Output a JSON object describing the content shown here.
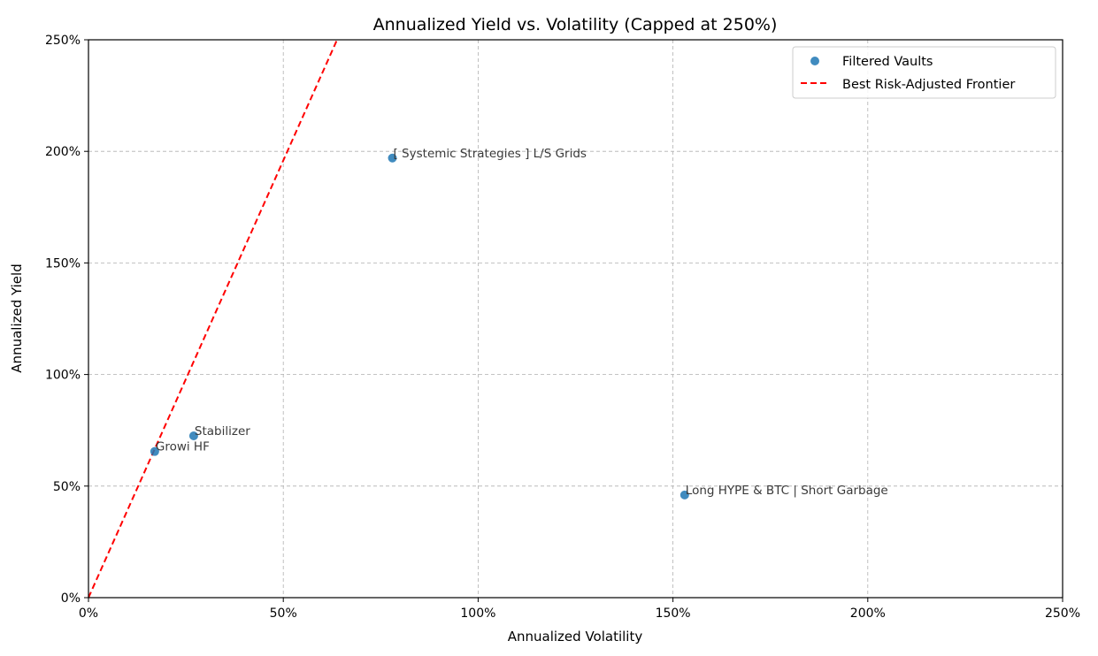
{
  "chart_data": {
    "type": "scatter",
    "title": "Annualized Yield vs. Volatility (Capped at 250%)",
    "xlabel": "Annualized Volatility",
    "ylabel": "Annualized Yield",
    "xlim": [
      0,
      250
    ],
    "ylim": [
      0,
      250
    ],
    "x_ticks": [
      0,
      50,
      100,
      150,
      200,
      250
    ],
    "y_ticks": [
      0,
      50,
      100,
      150,
      200,
      250
    ],
    "x_tick_labels": [
      "0%",
      "50%",
      "100%",
      "150%",
      "200%",
      "250%"
    ],
    "y_tick_labels": [
      "0%",
      "50%",
      "100%",
      "150%",
      "200%",
      "250%"
    ],
    "grid": true,
    "legend_position": "top-right",
    "series": [
      {
        "name": "Filtered Vaults",
        "type": "scatter",
        "color": "#1f77b4",
        "points": [
          {
            "x": 17,
            "y": 65.5,
            "label": "Growi HF"
          },
          {
            "x": 27,
            "y": 72.5,
            "label": "Stabilizer"
          },
          {
            "x": 78,
            "y": 197,
            "label": "[ Systemic Strategies ] L/S Grids"
          },
          {
            "x": 153,
            "y": 46,
            "label": "Long HYPE & BTC | Short Garbage"
          }
        ]
      },
      {
        "name": "Best Risk-Adjusted Frontier",
        "type": "line",
        "color": "#ff0000",
        "style": "dashed",
        "points": [
          {
            "x": 0,
            "y": 0
          },
          {
            "x": 63.8,
            "y": 250
          }
        ]
      }
    ]
  }
}
